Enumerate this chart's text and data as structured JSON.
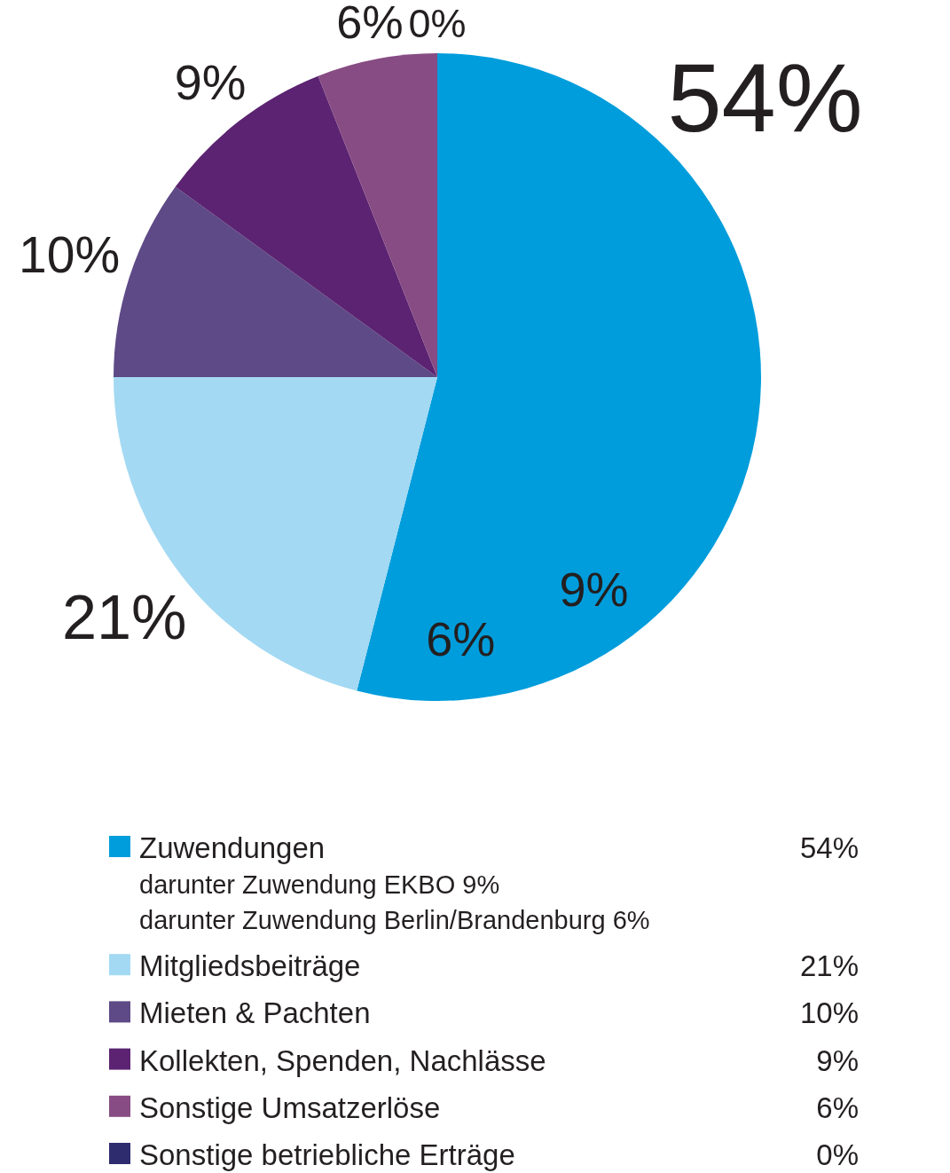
{
  "chart_data": {
    "type": "pie",
    "categories": [
      "Zuwendungen",
      "Mitgliedsbeiträge",
      "Mieten & Pachten",
      "Kollekten, Spenden, Nachlässe",
      "Sonstige Umsatzerlöse",
      "Sonstige betriebliche Erträge"
    ],
    "values": [
      54,
      21,
      10,
      9,
      6,
      0
    ],
    "colors": [
      "#009ddc",
      "#a3d9f2",
      "#5d4a86",
      "#5b2371",
      "#874c83",
      "#2e2b6f"
    ],
    "value_labels": [
      "54%",
      "21%",
      "10%",
      "9%",
      "6%",
      "0%"
    ],
    "legend": "bottom",
    "annotations": [
      "9%",
      "6%",
      "darunter Zuwendung EKBO 9%",
      "darunter Zuwendung Berlin/Brandenburg 6%"
    ]
  }
}
